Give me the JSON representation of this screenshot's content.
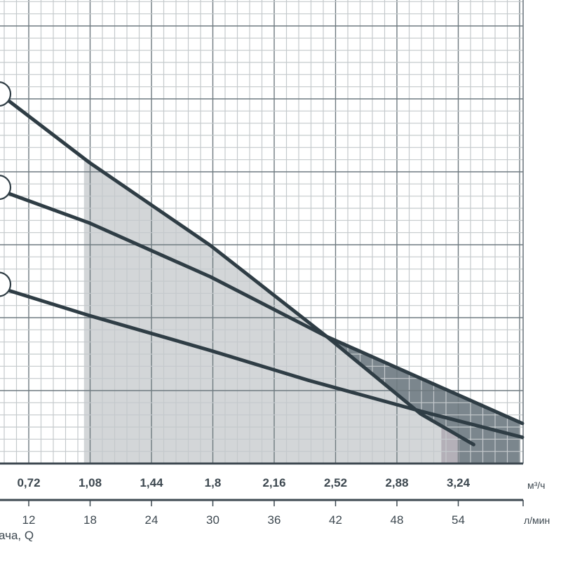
{
  "chart_data": {
    "type": "line",
    "title": "",
    "x_axis_primary": {
      "unit": "м³/ч",
      "ticks": [
        "0,72",
        "1,08",
        "1,44",
        "1,8",
        "2,16",
        "2,52",
        "2,88",
        "3,24"
      ],
      "tick_values": [
        0.72,
        1.08,
        1.44,
        1.8,
        2.16,
        2.52,
        2.88,
        3.24
      ],
      "range": [
        0.59,
        3.6
      ]
    },
    "x_axis_secondary": {
      "unit": "л/мин",
      "ticks": [
        "12",
        "18",
        "24",
        "30",
        "36",
        "42",
        "48",
        "54"
      ]
    },
    "xlabel": "ача, Q",
    "y_axis": {
      "labels_visible": false,
      "unit": "major grid divisions",
      "range": [
        0,
        6.35
      ]
    },
    "grid": true,
    "series": [
      {
        "x": [
          0.593,
          1.074,
          1.786,
          2.469,
          3.02,
          3.33
        ],
        "y": [
          4.99,
          4.13,
          2.99,
          1.74,
          0.68,
          0.26
        ]
      },
      {
        "x": [
          0.593,
          1.074,
          1.786,
          2.469,
          3.259,
          3.616
        ],
        "y": [
          3.71,
          3.3,
          2.56,
          1.74,
          0.92,
          0.55
        ]
      },
      {
        "x": [
          0.593,
          1.074,
          1.786,
          2.362,
          3.032,
          3.616
        ],
        "y": [
          2.38,
          2.03,
          1.55,
          1.14,
          0.71,
          0.36
        ]
      }
    ],
    "shaded_ranges": [
      {
        "x_from": 1.044,
        "x_to": 3.14,
        "color": "#d3d6d8"
      },
      {
        "x_from": 3.14,
        "x_to": 3.246,
        "color": "#b4b0b8"
      },
      {
        "x_from": 3.246,
        "x_to": 3.596,
        "color": "#7b868d"
      }
    ],
    "colors": {
      "curve": "#2f3d45",
      "grid_major": "#6f7a80",
      "grid_minor": "#c4c9cc",
      "dark_fill": "#7b868d",
      "light_fill": "#d3d6d8"
    }
  }
}
